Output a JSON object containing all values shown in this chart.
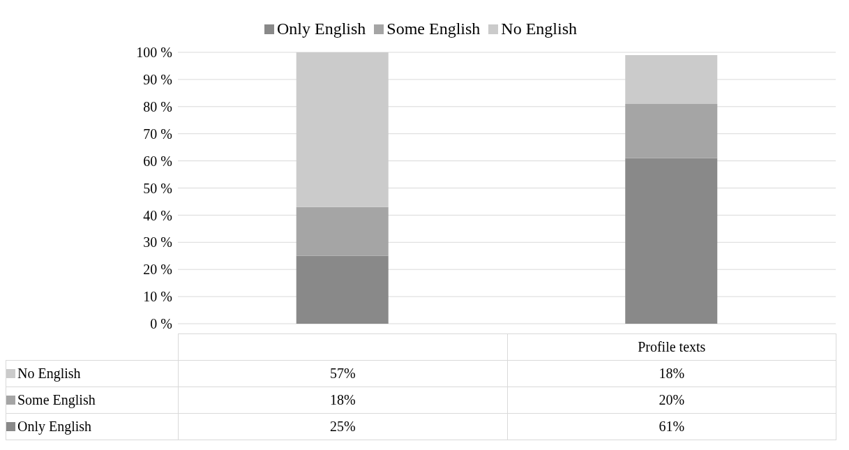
{
  "chart_data": {
    "type": "bar",
    "stacked": true,
    "categories": [
      null,
      "Profile texts"
    ],
    "series": [
      {
        "name": "Only English",
        "color": "#898989",
        "values": [
          25,
          61
        ],
        "value_labels": [
          "25%",
          "61%"
        ]
      },
      {
        "name": "Some English",
        "color": "#a5a5a5",
        "values": [
          18,
          20
        ],
        "value_labels": [
          "18%",
          "20%"
        ]
      },
      {
        "name": "No English",
        "color": "#cbcbcb",
        "values": [
          57,
          18
        ],
        "value_labels": [
          "57%",
          "18%"
        ]
      }
    ],
    "ylim": [
      0,
      100
    ],
    "yticks": [
      {
        "value": 0,
        "label": "0 %"
      },
      {
        "value": 10,
        "label": "10 %"
      },
      {
        "value": 20,
        "label": "20 %"
      },
      {
        "value": 30,
        "label": "30 %"
      },
      {
        "value": 40,
        "label": "40 %"
      },
      {
        "value": 50,
        "label": "50 %"
      },
      {
        "value": 60,
        "label": "60 %"
      },
      {
        "value": 70,
        "label": "70 %"
      },
      {
        "value": 80,
        "label": "80 %"
      },
      {
        "value": 90,
        "label": "90 %"
      },
      {
        "value": 100,
        "label": "100 %"
      }
    ],
    "grid": "y",
    "legend": "top"
  }
}
